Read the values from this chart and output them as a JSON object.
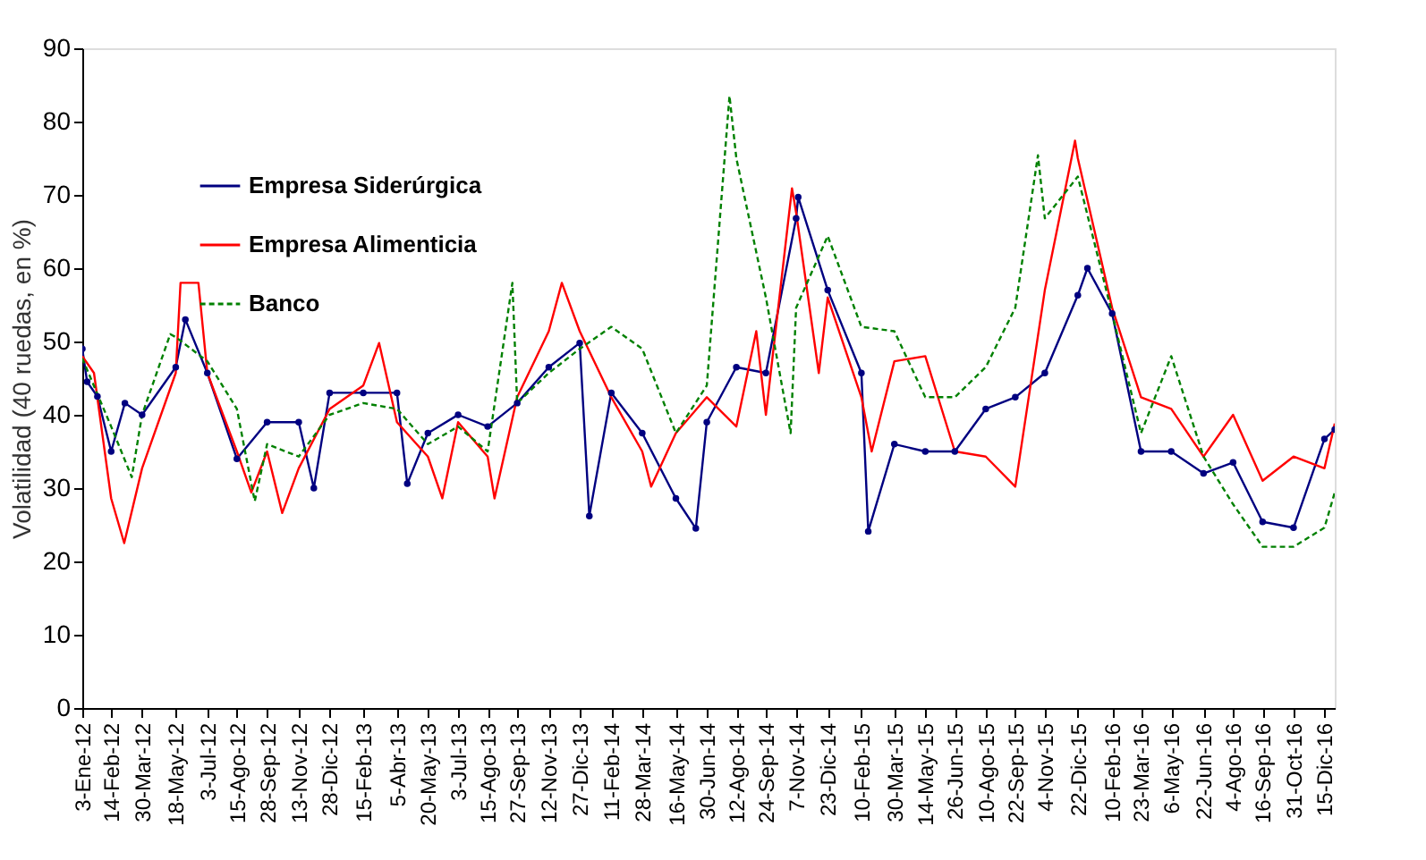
{
  "chart_data": {
    "type": "line",
    "ylabel": "Volatilidad (40 ruedas, en %)",
    "ylim": [
      0,
      90
    ],
    "yticks": [
      0,
      10,
      20,
      30,
      40,
      50,
      60,
      70,
      80,
      90
    ],
    "xlim": [
      "2012-01-03",
      "2016-12-30"
    ],
    "xticks": [
      {
        "value": "2012-01-03",
        "label": "3-Ene-12"
      },
      {
        "value": "2012-02-14",
        "label": "14-Feb-12"
      },
      {
        "value": "2012-03-30",
        "label": "30-Mar-12"
      },
      {
        "value": "2012-05-18",
        "label": "18-May-12"
      },
      {
        "value": "2012-07-03",
        "label": "3-Jul-12"
      },
      {
        "value": "2012-08-15",
        "label": "15-Ago-12"
      },
      {
        "value": "2012-09-28",
        "label": "28-Sep-12"
      },
      {
        "value": "2012-11-13",
        "label": "13-Nov-12"
      },
      {
        "value": "2012-12-28",
        "label": "28-Dic-12"
      },
      {
        "value": "2013-02-15",
        "label": "15-Feb-13"
      },
      {
        "value": "2013-04-05",
        "label": "5-Abr-13"
      },
      {
        "value": "2013-05-20",
        "label": "20-May-13"
      },
      {
        "value": "2013-07-03",
        "label": "3-Jul-13"
      },
      {
        "value": "2013-08-15",
        "label": "15-Ago-13"
      },
      {
        "value": "2013-09-27",
        "label": "27-Sep-13"
      },
      {
        "value": "2013-11-12",
        "label": "12-Nov-13"
      },
      {
        "value": "2013-12-27",
        "label": "27-Dic-13"
      },
      {
        "value": "2014-02-11",
        "label": "11-Feb-14"
      },
      {
        "value": "2014-03-28",
        "label": "28-Mar-14"
      },
      {
        "value": "2014-05-16",
        "label": "16-May-14"
      },
      {
        "value": "2014-06-30",
        "label": "30-Jun-14"
      },
      {
        "value": "2014-08-12",
        "label": "12-Ago-14"
      },
      {
        "value": "2014-09-24",
        "label": "24-Sep-14"
      },
      {
        "value": "2014-11-07",
        "label": "7-Nov-14"
      },
      {
        "value": "2014-12-23",
        "label": "23-Dic-14"
      },
      {
        "value": "2015-02-10",
        "label": "10-Feb-15"
      },
      {
        "value": "2015-03-30",
        "label": "30-Mar-15"
      },
      {
        "value": "2015-05-14",
        "label": "14-May-15"
      },
      {
        "value": "2015-06-26",
        "label": "26-Jun-15"
      },
      {
        "value": "2015-08-10",
        "label": "10-Ago-15"
      },
      {
        "value": "2015-09-22",
        "label": "22-Sep-15"
      },
      {
        "value": "2015-11-04",
        "label": "4-Nov-15"
      },
      {
        "value": "2015-12-22",
        "label": "22-Dic-15"
      },
      {
        "value": "2016-02-10",
        "label": "10-Feb-16"
      },
      {
        "value": "2016-03-23",
        "label": "23-Mar-16"
      },
      {
        "value": "2016-05-06",
        "label": "6-May-16"
      },
      {
        "value": "2016-06-22",
        "label": "22-Jun-16"
      },
      {
        "value": "2016-08-04",
        "label": "4-Ago-16"
      },
      {
        "value": "2016-09-16",
        "label": "16-Sep-16"
      },
      {
        "value": "2016-10-31",
        "label": "31-Oct-16"
      },
      {
        "value": "2016-12-15",
        "label": "15-Dic-16"
      }
    ],
    "grid": false,
    "legend": "top left",
    "series": [
      {
        "name": "Empresa Siderúrgica",
        "color": "#000080",
        "marker": "circle",
        "line_style": "solid",
        "x": [
          "2012-01-03",
          "2012-01-10",
          "2012-01-25",
          "2012-02-14",
          "2012-03-05",
          "2012-03-30",
          "2012-05-18",
          "2012-06-01",
          "2012-07-03",
          "2012-08-15",
          "2012-09-28",
          "2012-11-13",
          "2012-12-05",
          "2012-12-28",
          "2013-02-15",
          "2013-04-05",
          "2013-04-20",
          "2013-05-20",
          "2013-07-03",
          "2013-08-15",
          "2013-09-27",
          "2013-11-12",
          "2013-12-27",
          "2014-01-10",
          "2014-02-11",
          "2014-03-28",
          "2014-05-16",
          "2014-06-14",
          "2014-06-30",
          "2014-08-12",
          "2014-09-24",
          "2014-11-07",
          "2014-11-10",
          "2014-12-23",
          "2015-02-10",
          "2015-02-20",
          "2015-03-30",
          "2015-05-14",
          "2015-06-26",
          "2015-08-10",
          "2015-09-22",
          "2015-11-04",
          "2015-12-22",
          "2016-01-05",
          "2016-02-10",
          "2016-03-23",
          "2016-05-06",
          "2016-06-22",
          "2016-08-04",
          "2016-09-16",
          "2016-10-31",
          "2016-12-15",
          "2016-12-30"
        ],
        "values": [
          49,
          44.5,
          42.5,
          35,
          41.6,
          40,
          46.5,
          53,
          45.7,
          34,
          39,
          39,
          30,
          43,
          43,
          43,
          30.6,
          37.5,
          40,
          38.4,
          41.6,
          46.5,
          49.8,
          26.2,
          43,
          37.5,
          28.6,
          24.5,
          39,
          46.5,
          45.7,
          66.8,
          69.7,
          57,
          45.7,
          24.1,
          36,
          35,
          35,
          40.8,
          42.4,
          45.7,
          56.3,
          60,
          53.8,
          35,
          35,
          32,
          33.5,
          25.4,
          24.6,
          36.7,
          38
        ]
      },
      {
        "name": "Empresa Alimenticia",
        "color": "#ff0000",
        "marker": "none",
        "line_style": "solid",
        "x": [
          "2012-01-03",
          "2012-01-20",
          "2012-02-14",
          "2012-03-04",
          "2012-03-30",
          "2012-05-18",
          "2012-05-25",
          "2012-06-20",
          "2012-07-03",
          "2012-08-15",
          "2012-09-05",
          "2012-09-28",
          "2012-10-20",
          "2012-11-13",
          "2012-12-28",
          "2013-02-15",
          "2013-03-10",
          "2013-04-05",
          "2013-05-20",
          "2013-06-10",
          "2013-07-03",
          "2013-08-15",
          "2013-08-25",
          "2013-09-27",
          "2013-11-12",
          "2013-12-01",
          "2013-12-27",
          "2014-02-11",
          "2014-03-28",
          "2014-04-10",
          "2014-05-16",
          "2014-06-30",
          "2014-08-12",
          "2014-09-10",
          "2014-09-24",
          "2014-11-01",
          "2014-11-07",
          "2014-12-10",
          "2014-12-23",
          "2015-02-10",
          "2015-02-25",
          "2015-03-30",
          "2015-05-14",
          "2015-06-26",
          "2015-08-10",
          "2015-09-22",
          "2015-11-04",
          "2015-12-18",
          "2015-12-22",
          "2016-02-10",
          "2016-03-23",
          "2016-05-06",
          "2016-06-22",
          "2016-08-04",
          "2016-09-16",
          "2016-10-31",
          "2016-12-15",
          "2016-12-30"
        ],
        "values": [
          48,
          45.7,
          28.6,
          22.5,
          32.7,
          45.7,
          58,
          58,
          45.7,
          35,
          29.4,
          35,
          26.6,
          32.7,
          40.8,
          44,
          49.8,
          39,
          34.3,
          28.6,
          39,
          34.3,
          28.6,
          42.4,
          51.4,
          58,
          51.4,
          42.4,
          35,
          30.2,
          37.5,
          42.4,
          38.4,
          51.4,
          40,
          70.9,
          67.6,
          45.7,
          56,
          42.4,
          35,
          47.3,
          48,
          35,
          34.3,
          30.2,
          57,
          77.4,
          75,
          54.6,
          42.4,
          40.8,
          34.3,
          40,
          31,
          34.3,
          32.7,
          38.8
        ]
      },
      {
        "name": "Banco",
        "color": "#008000",
        "marker": "none",
        "line_style": "dashed",
        "x": [
          "2012-01-03",
          "2012-02-14",
          "2012-03-15",
          "2012-03-30",
          "2012-05-10",
          "2012-05-18",
          "2012-07-03",
          "2012-08-15",
          "2012-09-10",
          "2012-09-28",
          "2012-11-13",
          "2012-12-28",
          "2013-02-15",
          "2013-04-05",
          "2013-05-20",
          "2013-07-03",
          "2013-08-15",
          "2013-09-20",
          "2013-09-27",
          "2013-11-12",
          "2013-12-27",
          "2014-02-11",
          "2014-03-28",
          "2014-05-16",
          "2014-06-30",
          "2014-08-02",
          "2014-08-12",
          "2014-09-24",
          "2014-10-30",
          "2014-11-07",
          "2014-12-23",
          "2015-02-10",
          "2015-03-30",
          "2015-05-14",
          "2015-06-26",
          "2015-08-10",
          "2015-09-22",
          "2015-10-25",
          "2015-11-04",
          "2015-12-22",
          "2016-02-10",
          "2016-03-23",
          "2016-05-06",
          "2016-06-22",
          "2016-08-04",
          "2016-09-16",
          "2016-10-31",
          "2016-12-15",
          "2016-12-30"
        ],
        "values": [
          47.7,
          38.4,
          31.5,
          40,
          51,
          50.6,
          47.3,
          40.8,
          28.2,
          36,
          34.3,
          40,
          41.6,
          40.8,
          36,
          38.4,
          35,
          58,
          41.6,
          45.7,
          49,
          52,
          49,
          37.5,
          44,
          83.5,
          75,
          56,
          37.5,
          54.6,
          64.4,
          52,
          51.4,
          42.4,
          42.4,
          46.5,
          54.6,
          75.4,
          66.8,
          72.5,
          53.8,
          37.5,
          48,
          34.3,
          27.8,
          22,
          22,
          24.6,
          29.4
        ]
      }
    ]
  }
}
